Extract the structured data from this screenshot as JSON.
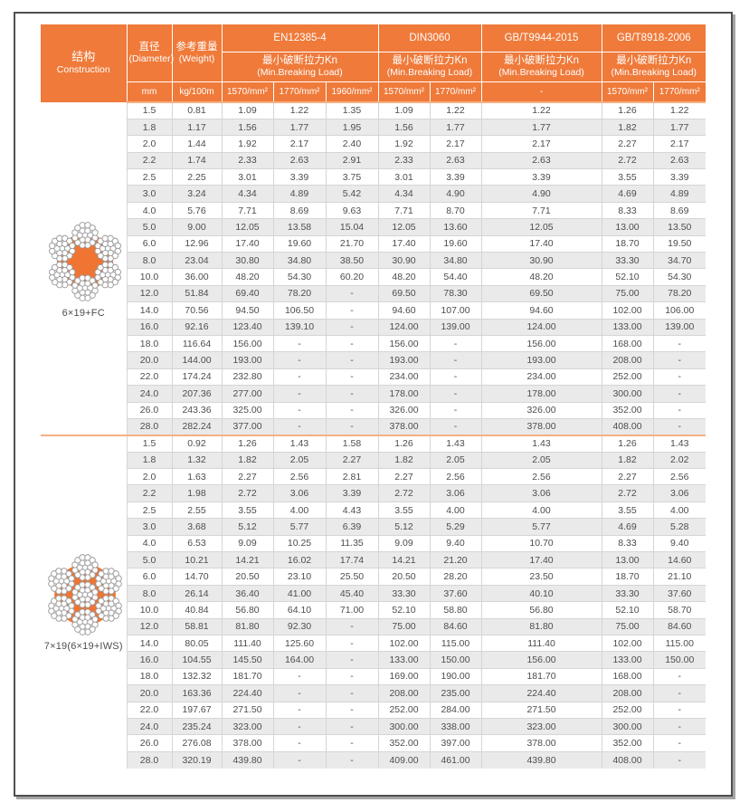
{
  "colors": {
    "accent": "#EF7A3A",
    "header_text": "#FFFFFF",
    "alt_row": "#EAEAEA",
    "grid_line": "#D5D5D5",
    "body_text": "#4D4D4D",
    "divider_light": "#F5B183",
    "core_orange": "#F07432",
    "wire_stroke": "#9A9A9A"
  },
  "header": {
    "construction": {
      "zh": "结构",
      "en": "Construction"
    },
    "diameter": {
      "zh": "直径",
      "en": "(Diameter)",
      "unit": "mm"
    },
    "weight": {
      "zh": "参考重量",
      "en": "(Weight)",
      "unit": "kg/100m"
    },
    "breaking_load": {
      "zh": "最小破断拉力Kn",
      "en": "(Min.Breaking Load)"
    },
    "standards": [
      {
        "name": "EN12385-4",
        "units": [
          "1570/mm²",
          "1770/mm²",
          "1960/mm²"
        ]
      },
      {
        "name": "DIN3060",
        "units": [
          "1570/mm²",
          "1770/mm²"
        ]
      },
      {
        "name": "GB/T9944-2015",
        "units": [
          "-"
        ]
      },
      {
        "name": "GB/T8918-2006",
        "units": [
          "1570/mm²",
          "1770/mm²"
        ]
      }
    ]
  },
  "sections": [
    {
      "label": "6×19+FC",
      "rope_icon": "rope-cross-section-6x19-fc",
      "rope_type": "fc",
      "rows": [
        [
          "1.5",
          "0.81",
          "1.09",
          "1.22",
          "1.35",
          "1.09",
          "1.22",
          "1.22",
          "1.26",
          "1.22"
        ],
        [
          "1.8",
          "1.17",
          "1.56",
          "1.77",
          "1.95",
          "1.56",
          "1.77",
          "1.77",
          "1.82",
          "1.77"
        ],
        [
          "2.0",
          "1.44",
          "1.92",
          "2.17",
          "2.40",
          "1.92",
          "2.17",
          "2.17",
          "2.27",
          "2.17"
        ],
        [
          "2.2",
          "1.74",
          "2.33",
          "2.63",
          "2.91",
          "2.33",
          "2.63",
          "2.63",
          "2.72",
          "2.63"
        ],
        [
          "2.5",
          "2.25",
          "3.01",
          "3.39",
          "3.75",
          "3.01",
          "3.39",
          "3.39",
          "3.55",
          "3.39"
        ],
        [
          "3.0",
          "3.24",
          "4.34",
          "4.89",
          "5.42",
          "4.34",
          "4.90",
          "4.90",
          "4.69",
          "4.89"
        ],
        [
          "4.0",
          "5.76",
          "7.71",
          "8.69",
          "9.63",
          "7.71",
          "8.70",
          "7.71",
          "8.33",
          "8.69"
        ],
        [
          "5.0",
          "9.00",
          "12.05",
          "13.58",
          "15.04",
          "12.05",
          "13.60",
          "12.05",
          "13.00",
          "13.50"
        ],
        [
          "6.0",
          "12.96",
          "17.40",
          "19.60",
          "21.70",
          "17.40",
          "19.60",
          "17.40",
          "18.70",
          "19.50"
        ],
        [
          "8.0",
          "23.04",
          "30.80",
          "34.80",
          "38.50",
          "30.90",
          "34.80",
          "30.90",
          "33.30",
          "34.70"
        ],
        [
          "10.0",
          "36.00",
          "48.20",
          "54.30",
          "60.20",
          "48.20",
          "54.40",
          "48.20",
          "52.10",
          "54.30"
        ],
        [
          "12.0",
          "51.84",
          "69.40",
          "78.20",
          "-",
          "69.50",
          "78.30",
          "69.50",
          "75.00",
          "78.20"
        ],
        [
          "14.0",
          "70.56",
          "94.50",
          "106.50",
          "-",
          "94.60",
          "107.00",
          "94.60",
          "102.00",
          "106.00"
        ],
        [
          "16.0",
          "92.16",
          "123.40",
          "139.10",
          "-",
          "124.00",
          "139.00",
          "124.00",
          "133.00",
          "139.00"
        ],
        [
          "18.0",
          "116.64",
          "156.00",
          "-",
          "-",
          "156.00",
          "-",
          "156.00",
          "168.00",
          "-"
        ],
        [
          "20.0",
          "144.00",
          "193.00",
          "-",
          "-",
          "193.00",
          "-",
          "193.00",
          "208.00",
          "-"
        ],
        [
          "22.0",
          "174.24",
          "232.80",
          "-",
          "-",
          "234.00",
          "-",
          "234.00",
          "252.00",
          "-"
        ],
        [
          "24.0",
          "207.36",
          "277.00",
          "-",
          "-",
          "178.00",
          "-",
          "178.00",
          "300.00",
          "-"
        ],
        [
          "26.0",
          "243.36",
          "325.00",
          "-",
          "-",
          "326.00",
          "-",
          "326.00",
          "352.00",
          "-"
        ],
        [
          "28.0",
          "282.24",
          "377.00",
          "-",
          "-",
          "378.00",
          "-",
          "378.00",
          "408.00",
          "-"
        ]
      ]
    },
    {
      "label": "7×19(6×19+IWS)",
      "rope_icon": "rope-cross-section-7x19-iws",
      "rope_type": "iws",
      "rows": [
        [
          "1.5",
          "0.92",
          "1.26",
          "1.43",
          "1.58",
          "1.26",
          "1.43",
          "1.43",
          "1.26",
          "1.43"
        ],
        [
          "1.8",
          "1.32",
          "1.82",
          "2.05",
          "2.27",
          "1.82",
          "2.05",
          "2.05",
          "1.82",
          "2.02"
        ],
        [
          "2.0",
          "1.63",
          "2.27",
          "2.56",
          "2.81",
          "2.27",
          "2.56",
          "2.56",
          "2.27",
          "2.56"
        ],
        [
          "2.2",
          "1.98",
          "2.72",
          "3.06",
          "3.39",
          "2.72",
          "3.06",
          "3.06",
          "2.72",
          "3.06"
        ],
        [
          "2.5",
          "2.55",
          "3.55",
          "4.00",
          "4.43",
          "3.55",
          "4.00",
          "4.00",
          "3.55",
          "4.00"
        ],
        [
          "3.0",
          "3.68",
          "5.12",
          "5.77",
          "6.39",
          "5.12",
          "5.29",
          "5.77",
          "4.69",
          "5.28"
        ],
        [
          "4.0",
          "6.53",
          "9.09",
          "10.25",
          "11.35",
          "9.09",
          "9.40",
          "10.70",
          "8.33",
          "9.40"
        ],
        [
          "5.0",
          "10.21",
          "14.21",
          "16.02",
          "17.74",
          "14.21",
          "21.20",
          "17.40",
          "13.00",
          "14.60"
        ],
        [
          "6.0",
          "14.70",
          "20.50",
          "23.10",
          "25.50",
          "20.50",
          "28.20",
          "23.50",
          "18.70",
          "21.10"
        ],
        [
          "8.0",
          "26.14",
          "36.40",
          "41.00",
          "45.40",
          "33.30",
          "37.60",
          "40.10",
          "33.30",
          "37.60"
        ],
        [
          "10.0",
          "40.84",
          "56.80",
          "64.10",
          "71.00",
          "52.10",
          "58.80",
          "56.80",
          "52.10",
          "58.70"
        ],
        [
          "12.0",
          "58.81",
          "81.80",
          "92.30",
          "-",
          "75.00",
          "84.60",
          "81.80",
          "75.00",
          "84.60"
        ],
        [
          "14.0",
          "80.05",
          "111.40",
          "125.60",
          "-",
          "102.00",
          "115.00",
          "111.40",
          "102.00",
          "115.00"
        ],
        [
          "16.0",
          "104.55",
          "145.50",
          "164.00",
          "-",
          "133.00",
          "150.00",
          "156.00",
          "133.00",
          "150.00"
        ],
        [
          "18.0",
          "132.32",
          "181.70",
          "-",
          "-",
          "169.00",
          "190.00",
          "181.70",
          "168.00",
          "-"
        ],
        [
          "20.0",
          "163.36",
          "224.40",
          "-",
          "-",
          "208.00",
          "235.00",
          "224.40",
          "208.00",
          "-"
        ],
        [
          "22.0",
          "197.67",
          "271.50",
          "-",
          "-",
          "252.00",
          "284.00",
          "271.50",
          "252.00",
          "-"
        ],
        [
          "24.0",
          "235.24",
          "323.00",
          "-",
          "-",
          "300.00",
          "338.00",
          "323.00",
          "300.00",
          "-"
        ],
        [
          "26.0",
          "276.08",
          "378.00",
          "-",
          "-",
          "352.00",
          "397.00",
          "378.00",
          "352.00",
          "-"
        ],
        [
          "28.0",
          "320.19",
          "439.80",
          "-",
          "-",
          "409.00",
          "461.00",
          "439.80",
          "408.00",
          "-"
        ]
      ]
    }
  ]
}
